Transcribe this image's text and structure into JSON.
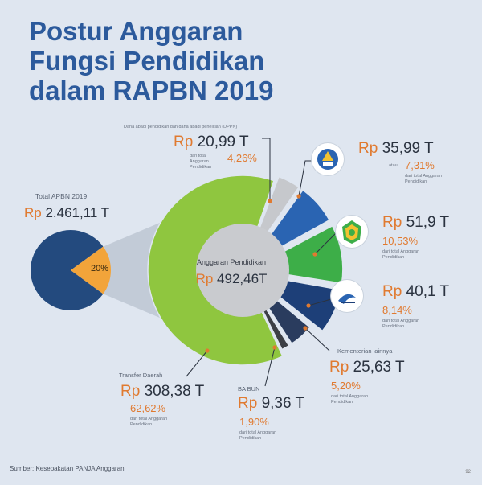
{
  "title": {
    "line1": "Postur Anggaran",
    "line2": "Fungsi Pendidikan",
    "line3": "dalam RAPBN 2019"
  },
  "colors": {
    "background": "#dfe6f0",
    "title": "#2c5a9c",
    "accent": "#e07a30",
    "green_light": "#8fc63f",
    "green": "#3dae48",
    "blue": "#2a64b2",
    "navy": "#1d3f78",
    "dark_gray": "#3c3f45",
    "light_gray": "#c6c8cc",
    "center_gray": "#c9cbcf",
    "total_pie": "#234a7e",
    "slice_orange": "#f2a43a"
  },
  "icons": [
    "kemdikbud-logo-icon",
    "kemenag-logo-icon",
    "ristekdikti-logo-icon"
  ],
  "chart_data": {
    "type": "pie",
    "total": {
      "label": "Total APBN 2019",
      "rp": "Rp",
      "amount": "2.461,11 T",
      "share_label": "20%",
      "share_value": 20
    },
    "center": {
      "label": "Anggaran Pendidikan",
      "rp": "Rp",
      "amount": "492,46T"
    },
    "slices": [
      {
        "key": "transfer",
        "name": "Transfer Daerah",
        "rp": "Rp",
        "amount": "308,38 T",
        "pct_text": "62,62%",
        "value": 62.62,
        "note": "dari total Anggaran Pendidikan"
      },
      {
        "key": "dppn",
        "name": "Dana abadi pendidikan dan dana abadi penelitian (DPPN)",
        "rp": "Rp",
        "amount": "20,99 T",
        "pct_text": "4,26%",
        "value": 4.26,
        "note": "dari total Anggaran Pendidikan"
      },
      {
        "key": "kemdikbud",
        "name": "",
        "rp": "Rp",
        "amount": "35,99 T",
        "prefix": "atau",
        "pct_text": "7,31%",
        "value": 7.31,
        "note": "dari total Anggaran Pendidikan"
      },
      {
        "key": "kemenag",
        "name": "",
        "rp": "Rp",
        "amount": "51,9 T",
        "pct_text": "10,53%",
        "value": 10.53,
        "note": "dari total Anggaran Pendidikan"
      },
      {
        "key": "ristekdikti",
        "name": "",
        "rp": "Rp",
        "amount": "40,1 T",
        "pct_text": "8,14%",
        "value": 8.14,
        "note": "dari total Anggaran Pendidikan"
      },
      {
        "key": "kl_lain",
        "name": "Kementerian lainnya",
        "rp": "Rp",
        "amount": "25,63 T",
        "pct_text": "5,20%",
        "value": 5.2,
        "note": "dari total Anggaran Pendidikan"
      },
      {
        "key": "babun",
        "name": "BA BUN",
        "rp": "Rp",
        "amount": "9,36 T",
        "pct_text": "1,90%",
        "value": 1.9,
        "note": "dari total Anggaran Pendidikan"
      }
    ]
  },
  "footer": {
    "source": "Sumber: Kesepakatan PANJA Anggaran",
    "page": "92"
  }
}
